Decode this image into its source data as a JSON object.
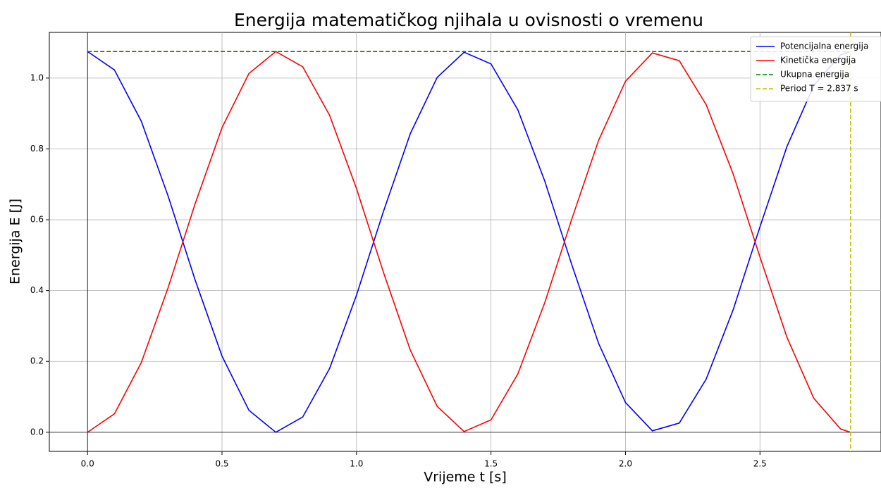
{
  "chart_data": {
    "type": "line",
    "title": "Energija matematičkog njihala u ovisnosti o vremenu",
    "xlabel": "Vrijeme t [s]",
    "ylabel": "Energija E [J]",
    "x": [
      0,
      0.1,
      0.2,
      0.3,
      0.4,
      0.5,
      0.6,
      0.7,
      0.8,
      0.9,
      1.0,
      1.1,
      1.2,
      1.3,
      1.4,
      1.5,
      1.6,
      1.7,
      1.8,
      1.9,
      2.0,
      2.1,
      2.2,
      2.3,
      2.4,
      2.5,
      2.6,
      2.7,
      2.8,
      2.837
    ],
    "series": [
      {
        "name": "Potencijalna energija",
        "color": "#0000ff",
        "dash": false,
        "values": [
          1.075,
          1.023,
          0.878,
          0.666,
          0.43,
          0.215,
          0.062,
          0.0,
          0.043,
          0.18,
          0.387,
          0.623,
          0.843,
          1.002,
          1.073,
          1.04,
          0.91,
          0.709,
          0.474,
          0.251,
          0.084,
          0.004,
          0.026,
          0.15,
          0.345,
          0.58,
          0.806,
          0.979,
          1.066,
          1.075
        ]
      },
      {
        "name": "Kinetička energija",
        "color": "#ff0000",
        "dash": false,
        "values": [
          0,
          0.052,
          0.197,
          0.409,
          0.645,
          0.86,
          1.013,
          1.075,
          1.032,
          0.895,
          0.688,
          0.452,
          0.232,
          0.073,
          0.002,
          0.035,
          0.165,
          0.366,
          0.601,
          0.824,
          0.991,
          1.071,
          1.049,
          0.925,
          0.73,
          0.495,
          0.269,
          0.096,
          0.009,
          0
        ]
      },
      {
        "name": "Ukupna energija",
        "color": "#008000",
        "dash": true,
        "values": [
          1.075,
          1.075,
          1.075,
          1.075,
          1.075,
          1.075,
          1.075,
          1.075,
          1.075,
          1.075,
          1.075,
          1.075,
          1.075,
          1.075,
          1.075,
          1.075,
          1.075,
          1.075,
          1.075,
          1.075,
          1.075,
          1.075,
          1.075,
          1.075,
          1.075,
          1.075,
          1.075,
          1.075,
          1.075,
          1.075
        ]
      }
    ],
    "vlines": [
      {
        "name": "Period T = 2.837 s",
        "x": 2.837,
        "color": "#bfbf00"
      }
    ],
    "xlim": [
      -0.142,
      2.95
    ],
    "ylim": [
      -0.054,
      1.129
    ],
    "xticks": [
      {
        "value": 0,
        "label": "0.0"
      },
      {
        "value": 0.5,
        "label": "0.5"
      },
      {
        "value": 1,
        "label": "1.0"
      },
      {
        "value": 1.5,
        "label": "1.5"
      },
      {
        "value": 2,
        "label": "2.0"
      },
      {
        "value": 2.5,
        "label": "2.5"
      }
    ],
    "yticks": [
      {
        "value": 0,
        "label": "0.0"
      },
      {
        "value": 0.2,
        "label": "0.2"
      },
      {
        "value": 0.4,
        "label": "0.4"
      },
      {
        "value": 0.6,
        "label": "0.6"
      },
      {
        "value": 0.8,
        "label": "0.8"
      },
      {
        "value": 1,
        "label": "1.0"
      }
    ],
    "grid": true,
    "legend": "upper right"
  }
}
